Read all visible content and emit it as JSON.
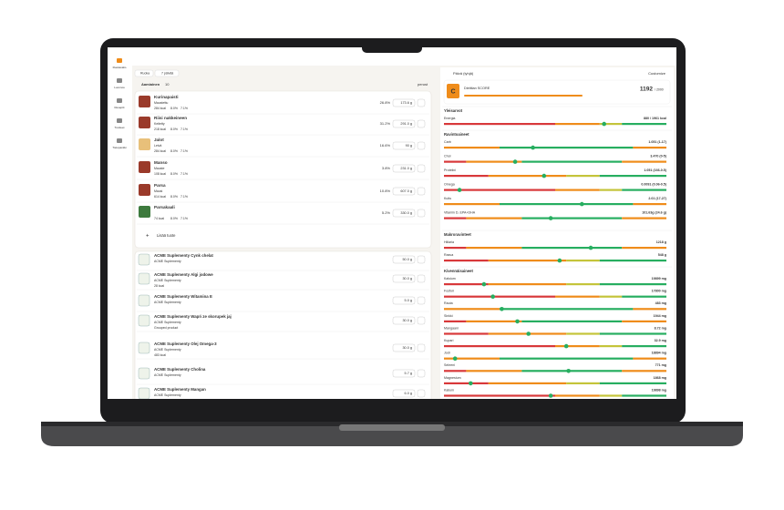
{
  "sidebar": {
    "items": [
      "Ruokavalio",
      "Luonnos",
      "Reseptit",
      "Tuotteet",
      "Tietopankki"
    ]
  },
  "toolbar": {
    "food": "Ruoka",
    "period": "7 päivää"
  },
  "meal": {
    "title": "Aamiainen",
    "count": "10",
    "action": "perust",
    "add": "Lisää tuote",
    "items": [
      {
        "name": "Kurinapaisti",
        "sub": "Maustettu",
        "kcal": "284 kcal",
        "p1": "8.0%",
        "p2": "7.1%",
        "share": "26.8%",
        "amount": "173.6 g"
      },
      {
        "name": "Riisi nakkeineen",
        "sub": "Keitetty",
        "kcal": "218 kcal",
        "p1": "8.0%",
        "p2": "7.1%",
        "share": "31.2%",
        "amount": "291.0 g"
      },
      {
        "name": "Jalot",
        "sub": "Leivä",
        "kcal": "284 kcal",
        "p1": "8.0%",
        "p2": "7.1%",
        "share": "16.6%",
        "amount": "90 g"
      },
      {
        "name": "Manso",
        "sub": "Mauste",
        "kcal": "108 kcal",
        "p1": "8.0%",
        "p2": "7.1%",
        "share": "3.8%",
        "amount": "231.0 g"
      },
      {
        "name": "Parsa",
        "sub": "Mausi",
        "kcal": "614 kcal",
        "p1": "8.0%",
        "p2": "7.1%",
        "share": "10.8%",
        "amount": "607.0 g"
      },
      {
        "name": "Parsakaali",
        "sub": "",
        "kcal": "74 kcal",
        "p1": "8.0%",
        "p2": "7.1%",
        "share": "5.2%",
        "amount": "330.0 g"
      }
    ]
  },
  "supplements": [
    {
      "name": "ACME Suplementy Cynk chelat",
      "brand": "ACME Suplementy",
      "note": "",
      "amount": "50.0 g"
    },
    {
      "name": "ACME Suplementy Algi jodowe",
      "brand": "ACME Suplementy",
      "note": "28 kcal",
      "amount": "30.0 g"
    },
    {
      "name": "ACME Suplementy Witamina E",
      "brand": "ACME Suplementy",
      "note": "",
      "amount": "5.0 g"
    },
    {
      "name": "ACME Suplementy Wapń ze skorupek jaj",
      "brand": "ACME Suplementy",
      "note": "Grouped product",
      "amount": "30.0 g"
    },
    {
      "name": "ACME Suplementy Olej Omega-3",
      "brand": "ACME Suplementy",
      "note": "483 kcal",
      "amount": "30.0 g"
    },
    {
      "name": "ACME Suplementy Cholina",
      "brand": "ACME Suplementy",
      "note": "",
      "amount": "5.7 g"
    },
    {
      "name": "ACME Suplementy Mangan",
      "brand": "ACME Suplementy",
      "note": "",
      "amount": "6.0 g"
    }
  ],
  "panel": {
    "title": "Päivä (tyhjä)",
    "customize": "Customize",
    "score": {
      "grade": "C",
      "label": "Dietitian SCORE",
      "value": "1192",
      "max": "/ 2000"
    },
    "sections": [
      {
        "title": "Yleisarvot",
        "rows": [
          {
            "name": "Energia",
            "value": "880 / 1961 kcal"
          }
        ]
      },
      {
        "title": "Ravintoaineet",
        "rows": [
          {
            "name": "Carb",
            "value": "1.051 (1-17)"
          },
          {
            "name": "Chol",
            "value": "3.470 (0-5)"
          },
          {
            "name": "Proteiini",
            "value": "1.051 (166-0.5)"
          },
          {
            "name": "Omega",
            "value": "0.0091 (0.06-0.5)"
          },
          {
            "name": "Kuitu",
            "value": "2.01 (17-27)"
          },
          {
            "name": "Vitamin D, EPA+DHA",
            "value": "101.63g (24.6 g)"
          }
        ]
      },
      {
        "title": "Makroravinteet",
        "rows": [
          {
            "name": "Hiilaria",
            "value": "1218 g"
          },
          {
            "name": "Rasva",
            "value": "548 g"
          }
        ]
      },
      {
        "title": "Kivennäisaineet",
        "rows": [
          {
            "name": "Kalsium",
            "value": "19899 mg"
          },
          {
            "name": "Fosfori",
            "value": "17800 mg"
          },
          {
            "name": "Rauta",
            "value": "483 mg"
          },
          {
            "name": "Sinkki",
            "value": "1944 mg"
          },
          {
            "name": "Mangaani",
            "value": "8.72 mg"
          },
          {
            "name": "Kupari",
            "value": "32.9 mg"
          },
          {
            "name": "Jodi",
            "value": "18894 mg"
          },
          {
            "name": "Seleeni",
            "value": "771 mg"
          },
          {
            "name": "Magnesium",
            "value": "1868 mg"
          },
          {
            "name": "Kalium",
            "value": "19898 mg"
          }
        ]
      }
    ]
  }
}
